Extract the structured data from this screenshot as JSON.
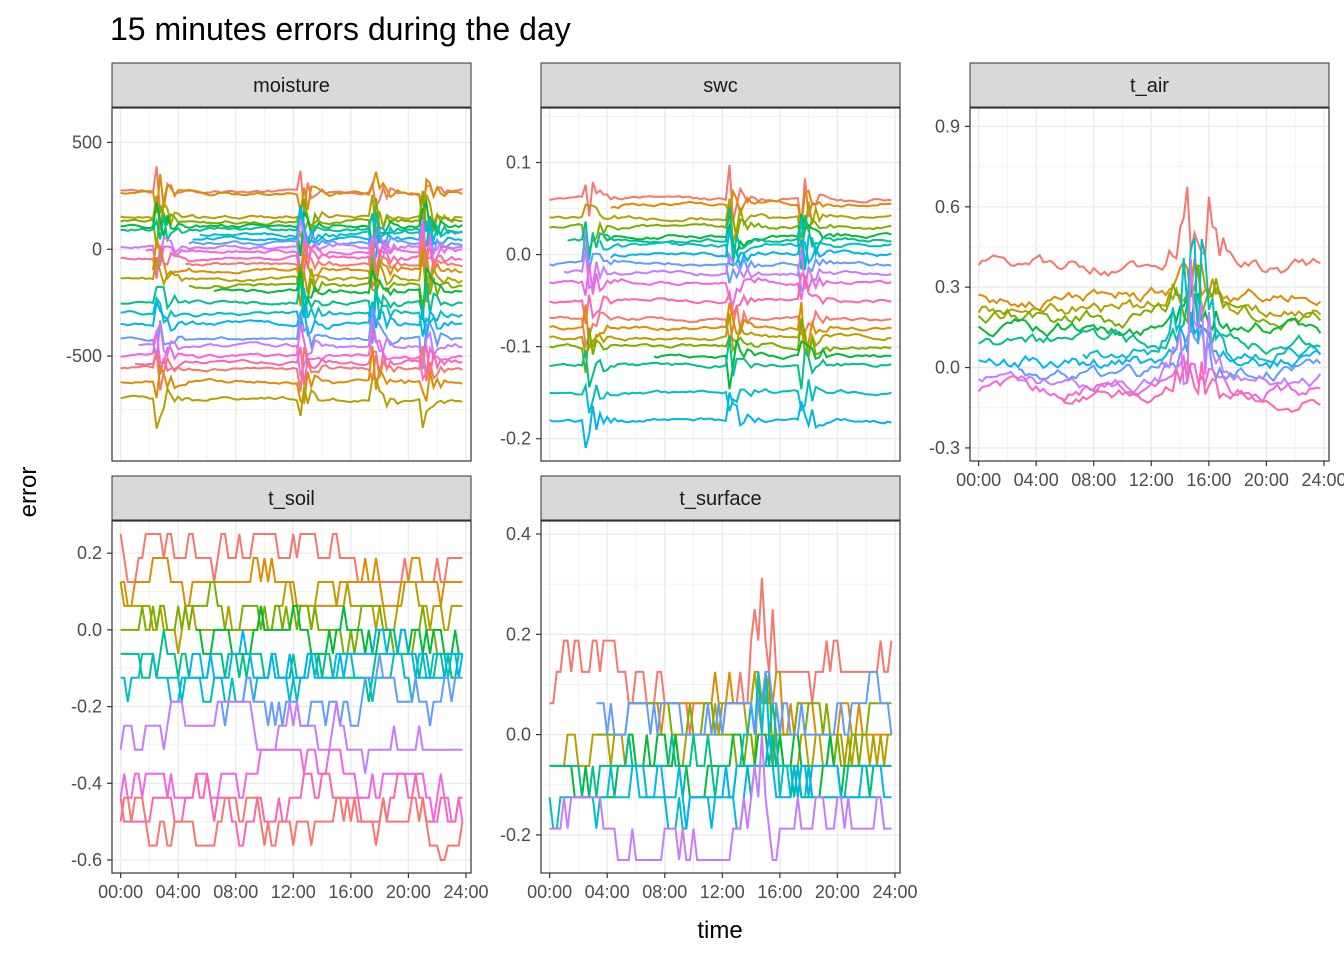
{
  "chart_data": {
    "type": "line",
    "title": "15 minutes errors during the day",
    "xlabel": "time",
    "ylabel": "error",
    "x_ticks": [
      "00:00",
      "04:00",
      "08:00",
      "12:00",
      "16:00",
      "20:00",
      "24:00"
    ],
    "legend": "none",
    "grid": true,
    "colors": [
      "#F8766D",
      "#DE8C00",
      "#B79F00",
      "#7CAE00",
      "#00BA38",
      "#00C08B",
      "#00BFC4",
      "#00B4F0",
      "#619CFF",
      "#C77CFF",
      "#F564E3",
      "#FF64B0"
    ],
    "panels": [
      {
        "name": "moisture",
        "ylim": [
          -930,
          600
        ],
        "y_ticks": [
          500,
          0,
          -500
        ],
        "y_tick_labels": [
          "500",
          "0",
          "-500"
        ],
        "levels": [
          270,
          260,
          150,
          130,
          110,
          90,
          70,
          50,
          30,
          10,
          -10,
          -40,
          -70,
          -100,
          -140,
          -170,
          -200,
          -250,
          -300,
          -350,
          -420,
          -450,
          -500,
          -530,
          -560,
          -620,
          -700
        ],
        "event_hours": [
          2.5,
          12.5,
          17.5,
          21
        ],
        "event_amp": 120,
        "noise": 12
      },
      {
        "name": "swc",
        "ylim": [
          -0.21,
          0.145
        ],
        "y_ticks": [
          0.1,
          0.0,
          -0.1,
          -0.2
        ],
        "y_tick_labels": [
          "0.1",
          "0.0",
          "-0.1",
          "-0.2"
        ],
        "levels": [
          0.06,
          0.055,
          0.04,
          0.03,
          0.02,
          0.015,
          0.01,
          0.0,
          -0.01,
          -0.02,
          -0.03,
          -0.05,
          -0.07,
          -0.08,
          -0.09,
          -0.1,
          -0.11,
          -0.12,
          -0.15,
          -0.18
        ],
        "event_hours": [
          2.5,
          12.5,
          17.5
        ],
        "event_amp": 0.03,
        "noise": 0.003
      },
      {
        "name": "t_air",
        "ylim": [
          -0.3,
          0.92
        ],
        "y_ticks": [
          0.9,
          0.6,
          0.3,
          0.0,
          -0.3
        ],
        "y_tick_labels": [
          "0.9",
          "0.6",
          "0.3",
          "0.0",
          "-0.3"
        ],
        "levels": [
          0.38,
          0.26,
          0.22,
          0.18,
          0.14,
          0.1,
          0.06,
          0.02,
          -0.02,
          -0.05,
          -0.08,
          -0.12
        ],
        "peak_hour": 15,
        "peak_amp": 0.5,
        "noise": 0.04
      },
      {
        "name": "t_soil",
        "ylim": [
          -0.6,
          0.25
        ],
        "y_ticks": [
          0.2,
          0.0,
          -0.2,
          -0.4,
          -0.6
        ],
        "y_tick_labels": [
          "0.2",
          "0.0",
          "-0.2",
          "-0.4",
          "-0.6"
        ],
        "levels": [
          0.19,
          0.12,
          0.06,
          0.0,
          0.0,
          -0.06,
          -0.12,
          -0.12,
          -0.19,
          -0.25,
          -0.38,
          -0.44,
          -0.5
        ],
        "quantum": 0.0625,
        "noise": 0.09
      },
      {
        "name": "t_surface",
        "ylim": [
          -0.25,
          0.4
        ],
        "y_ticks": [
          0.4,
          0.2,
          0.0,
          -0.2
        ],
        "y_tick_labels": [
          "0.4",
          "0.2",
          "0.0",
          "-0.2"
        ],
        "levels": [
          0.12,
          0.06,
          0.0,
          0.0,
          -0.06,
          -0.06,
          -0.12,
          -0.12,
          0.06,
          -0.19
        ],
        "peak_hour": 15,
        "peak_amp": 0.22,
        "quantum": 0.0625,
        "noise": 0.08
      }
    ]
  }
}
